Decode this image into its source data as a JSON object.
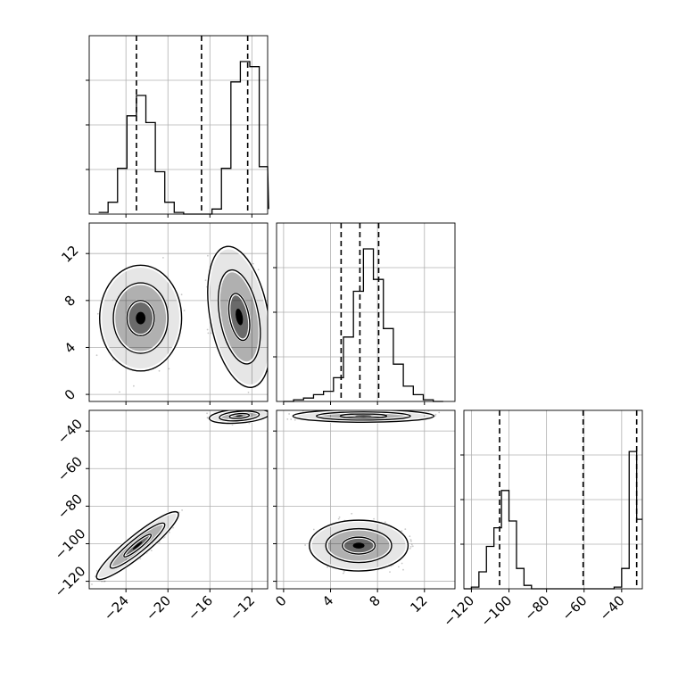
{
  "chart_data": {
    "type": "corner",
    "parameters": [
      {
        "ticks": [
          -24,
          -20,
          -16,
          -12
        ],
        "tick_labels": [
          "−24",
          "−20",
          "−16",
          "−12"
        ],
        "range": [
          -27.5,
          -10.5
        ],
        "quantiles": [
          -23.0,
          -16.8,
          -12.4
        ]
      },
      {
        "ticks": [
          0,
          4,
          8,
          12
        ],
        "tick_labels": [
          "0",
          "4",
          "8",
          "12"
        ],
        "range": [
          -0.6,
          14.6
        ],
        "quantiles": [
          4.9,
          6.5,
          8.1
        ]
      },
      {
        "ticks": [
          -120,
          -100,
          -80,
          -60,
          -40
        ],
        "tick_labels": [
          "−120",
          "−100",
          "−80",
          "−60",
          "−40"
        ],
        "range": [
          -124.0,
          -29.0
        ],
        "quantiles": [
          -105.0,
          -60.5,
          -32.0
        ]
      }
    ],
    "histograms": [
      {
        "param": 0,
        "bin_edges": [
          -26.6,
          -25.7,
          -24.8,
          -23.9,
          -23.0,
          -22.1,
          -21.2,
          -20.3,
          -19.4,
          -18.5,
          -17.6,
          -16.7,
          -15.8,
          -14.9,
          -14.0,
          -13.1,
          -12.2,
          -11.3,
          -10.4
        ],
        "counts": [
          0.01,
          0.07,
          0.27,
          0.58,
          0.7,
          0.54,
          0.25,
          0.07,
          0.01,
          0.0,
          0.0,
          0.0,
          0.03,
          0.27,
          0.78,
          0.9,
          0.87,
          0.28,
          0.03
        ]
      },
      {
        "param": 1,
        "bin_edges": [
          0.0,
          0.85,
          1.7,
          2.55,
          3.4,
          4.25,
          5.1,
          5.95,
          6.8,
          7.65,
          8.5,
          9.35,
          10.2,
          11.05,
          11.9,
          12.75,
          13.6
        ],
        "counts": [
          0.0,
          0.01,
          0.02,
          0.04,
          0.06,
          0.14,
          0.38,
          0.65,
          0.9,
          0.72,
          0.43,
          0.22,
          0.09,
          0.04,
          0.01,
          0.0
        ]
      },
      {
        "param": 2,
        "bin_edges": [
          -124.0,
          -120.0,
          -116.0,
          -112.0,
          -108.0,
          -104.0,
          -100.0,
          -96.0,
          -92.0,
          -88.0,
          -84.0,
          -80.0,
          -76.0,
          -72.0,
          -68.0,
          -64.0,
          -60.0,
          -56.0,
          -52.0,
          -48.0,
          -44.0,
          -40.0,
          -36.0,
          -32.0,
          -28.0
        ],
        "counts": [
          0.0,
          0.01,
          0.1,
          0.25,
          0.36,
          0.58,
          0.4,
          0.12,
          0.02,
          0.0,
          0.0,
          0.0,
          0.0,
          0.0,
          0.0,
          0.0,
          0.0,
          0.0,
          0.0,
          0.0,
          0.01,
          0.12,
          0.81,
          0.41
        ]
      }
    ],
    "pairs": [
      {
        "x_param": 0,
        "y_param": 1,
        "clusters": [
          {
            "center": [
              -22.6,
              6.5
            ],
            "sd": [
              1.3,
              1.5
            ],
            "rho": 0.0,
            "n": 1500
          },
          {
            "center": [
              -13.2,
              6.6
            ],
            "sd": [
              1.0,
              2.0
            ],
            "rho": -0.35,
            "n": 1500
          }
        ]
      },
      {
        "x_param": 0,
        "y_param": 2,
        "clusters": [
          {
            "center": [
              -22.9,
              -101.0
            ],
            "sd": [
              1.3,
              6.0
            ],
            "rho": 0.92,
            "n": 1500
          },
          {
            "center": [
              -13.2,
              -32.0
            ],
            "sd": [
              0.95,
              1.3
            ],
            "rho": 0.3,
            "n": 1500
          }
        ]
      },
      {
        "x_param": 1,
        "y_param": 2,
        "clusters": [
          {
            "center": [
              6.4,
              -101.0
            ],
            "sd": [
              1.4,
              4.5
            ],
            "rho": 0.0,
            "n": 1500
          },
          {
            "center": [
              6.8,
              -32.0
            ],
            "sd": [
              2.0,
              1.1
            ],
            "rho": 0.0,
            "n": 1500
          }
        ]
      }
    ],
    "levels": [
      0.393,
      0.865,
      0.989
    ],
    "grid": true,
    "marker_color": "#000000",
    "fill_color": "#000000"
  }
}
